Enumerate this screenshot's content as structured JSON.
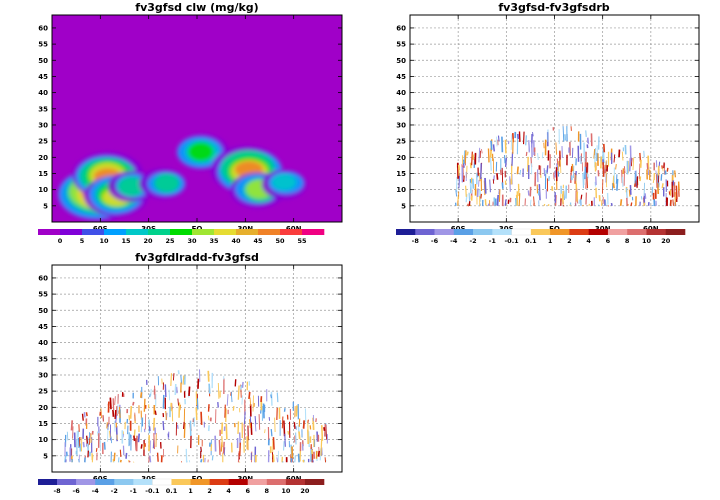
{
  "chart_data": [
    {
      "type": "heatmap",
      "title": "fv3gfsd clw (mg/kg)",
      "x_ticks": [
        "60S",
        "30S",
        "EQ",
        "30N",
        "60N"
      ],
      "x_tick_values": [
        -60,
        -30,
        0,
        30,
        60
      ],
      "xlim": [
        -90,
        90
      ],
      "y_ticks": [
        "5",
        "10",
        "15",
        "20",
        "25",
        "30",
        "35",
        "40",
        "45",
        "50",
        "55",
        "60"
      ],
      "ylim": [
        0,
        64
      ],
      "grid": false,
      "colorbar": {
        "labels": [
          "0",
          "5",
          "10",
          "15",
          "20",
          "25",
          "30",
          "35",
          "40",
          "45",
          "50",
          "55"
        ],
        "colors": [
          "#a000c8",
          "#8000d8",
          "#4050e8",
          "#00a0ff",
          "#00c8c8",
          "#00d28c",
          "#00dc00",
          "#a0e632",
          "#e6dc32",
          "#e6af2d",
          "#f08228",
          "#fa3c3c",
          "#f00082"
        ]
      },
      "background_value": 0,
      "features": [
        {
          "lat": -62,
          "z": 9,
          "value": 55
        },
        {
          "lat": -56,
          "z": 14,
          "value": 45
        },
        {
          "lat": -50,
          "z": 8,
          "value": 35
        },
        {
          "lat": -40,
          "z": 11,
          "value": 20
        },
        {
          "lat": -20,
          "z": 12,
          "value": 18
        },
        {
          "lat": 3,
          "z": 22,
          "value": 25
        },
        {
          "lat": 32,
          "z": 16,
          "value": 45
        },
        {
          "lat": 38,
          "z": 10,
          "value": 30
        },
        {
          "lat": 55,
          "z": 12,
          "value": 15
        }
      ]
    },
    {
      "type": "heatmap",
      "title": "fv3gfsd-fv3gfsdrb",
      "x_ticks": [
        "60S",
        "30S",
        "EQ",
        "30N",
        "60N"
      ],
      "x_tick_values": [
        -60,
        -30,
        0,
        30,
        60
      ],
      "xlim": [
        -90,
        90
      ],
      "y_ticks": [
        "5",
        "10",
        "15",
        "20",
        "25",
        "30",
        "35",
        "40",
        "45",
        "50",
        "55",
        "60"
      ],
      "ylim": [
        0,
        64
      ],
      "grid": true,
      "colorbar": {
        "labels": [
          "-8",
          "-6",
          "-4",
          "-2",
          "-1",
          "-0.1",
          "0.1",
          "1",
          "2",
          "4",
          "6",
          "8",
          "10",
          "20"
        ],
        "colors": [
          "#1e1e96",
          "#6e64d2",
          "#a096e6",
          "#5aa0e6",
          "#8cc8f0",
          "#b4e1fa",
          "#ffffff",
          "#fac85a",
          "#f09628",
          "#dc3c14",
          "#b40000",
          "#f0a0a0",
          "#dc6e6e",
          "#b43232",
          "#8c1e1e"
        ]
      },
      "lat_range": [
        -62,
        78
      ],
      "z_range": [
        5,
        30
      ]
    },
    {
      "type": "heatmap",
      "title": "fv3gfdlradd-fv3gfsd",
      "x_ticks": [
        "60S",
        "30S",
        "EQ",
        "30N",
        "60N"
      ],
      "x_tick_values": [
        -60,
        -30,
        0,
        30,
        60
      ],
      "xlim": [
        -90,
        90
      ],
      "y_ticks": [
        "5",
        "10",
        "15",
        "20",
        "25",
        "30",
        "35",
        "40",
        "45",
        "50",
        "55",
        "60"
      ],
      "ylim": [
        0,
        64
      ],
      "grid": true,
      "colorbar": {
        "labels": [
          "-8",
          "-6",
          "-4",
          "-2",
          "-1",
          "-0.1",
          "0.1",
          "1",
          "2",
          "4",
          "6",
          "8",
          "10",
          "20"
        ],
        "colors": [
          "#1e1e96",
          "#6e64d2",
          "#a096e6",
          "#5aa0e6",
          "#8cc8f0",
          "#b4e1fa",
          "#ffffff",
          "#fac85a",
          "#f09628",
          "#dc3c14",
          "#b40000",
          "#f0a0a0",
          "#dc6e6e",
          "#b43232",
          "#8c1e1e"
        ]
      },
      "lat_range": [
        -82,
        82
      ],
      "z_range": [
        3,
        32
      ]
    }
  ]
}
